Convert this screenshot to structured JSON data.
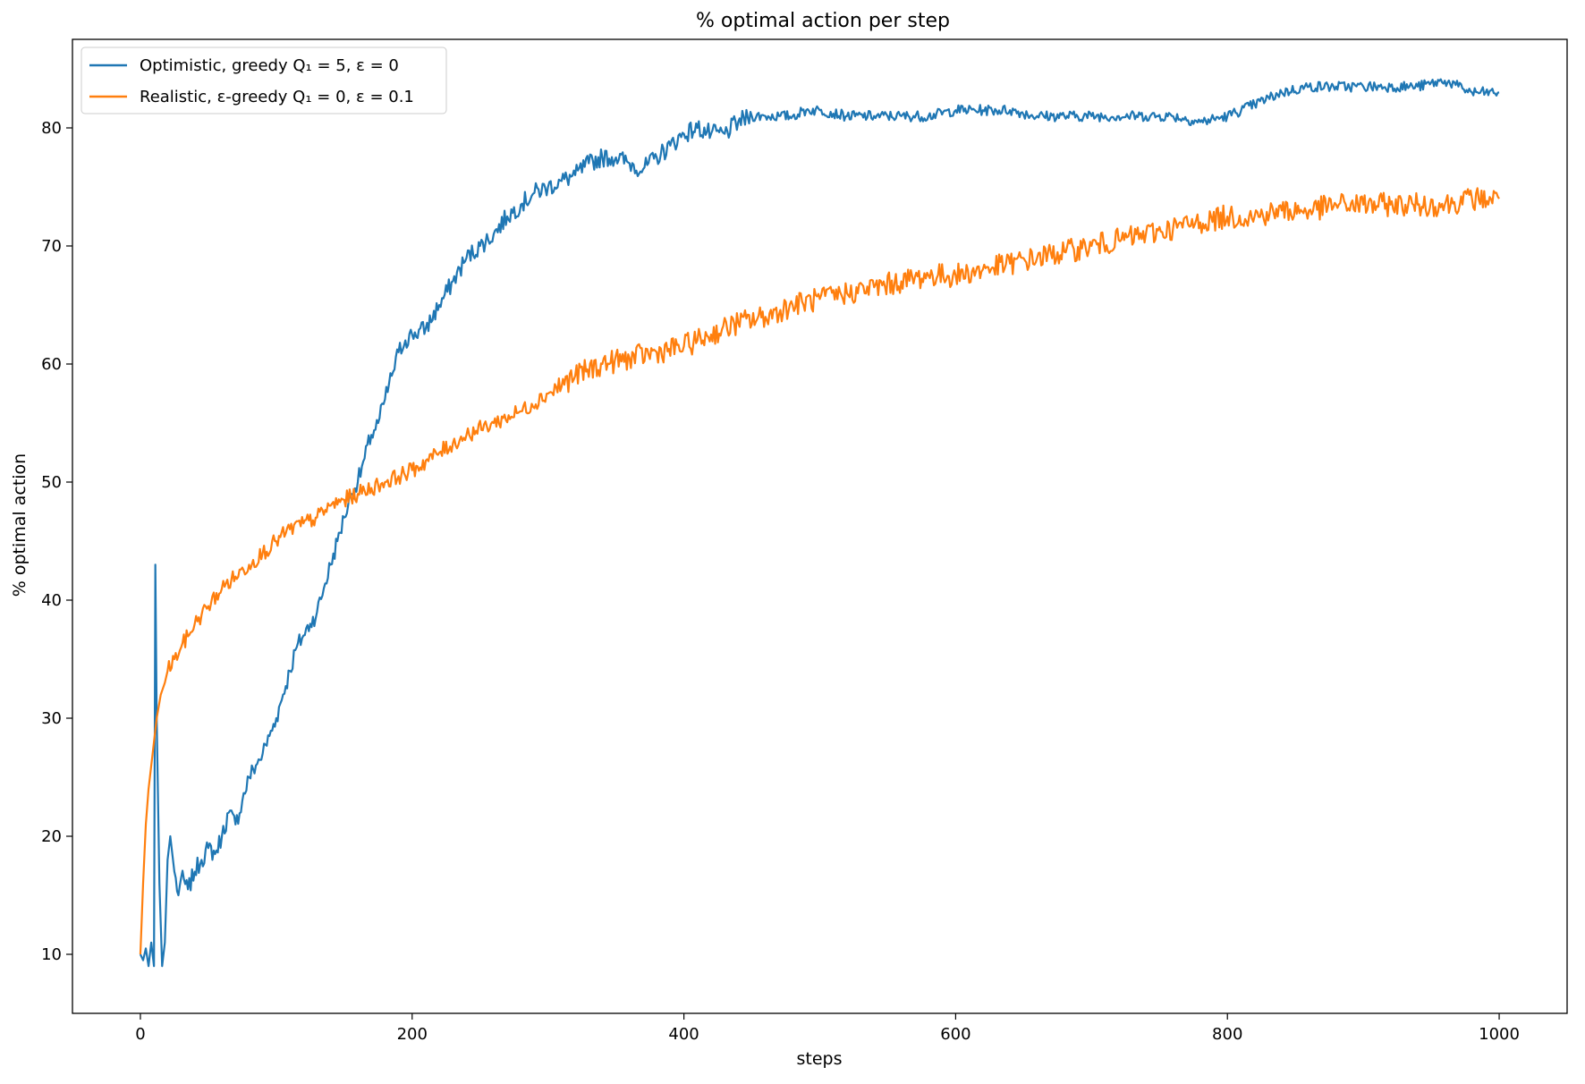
{
  "chart_data": {
    "type": "line",
    "title": "% optimal action per step",
    "xlabel": "steps",
    "ylabel": "% optimal action",
    "xlim": [
      -50,
      1050
    ],
    "ylim": [
      5,
      87.5
    ],
    "xticks": [
      0,
      200,
      400,
      600,
      800,
      1000
    ],
    "yticks": [
      10,
      20,
      30,
      40,
      50,
      60,
      70,
      80
    ],
    "grid": false,
    "legend_position": "top-left",
    "series": [
      {
        "name": "Optimistic, greedy Q₁ = 5, ε = 0",
        "color": "#1f77b4",
        "x": [
          0,
          2,
          4,
          6,
          8,
          10,
          11,
          12,
          14,
          16,
          18,
          20,
          22,
          25,
          28,
          30,
          35,
          40,
          45,
          50,
          55,
          60,
          65,
          70,
          75,
          80,
          85,
          90,
          95,
          100,
          105,
          110,
          115,
          120,
          125,
          130,
          135,
          140,
          145,
          150,
          155,
          160,
          165,
          170,
          175,
          180,
          185,
          190,
          195,
          200,
          210,
          220,
          230,
          240,
          250,
          260,
          270,
          280,
          290,
          300,
          310,
          320,
          330,
          340,
          350,
          360,
          370,
          380,
          390,
          400,
          410,
          420,
          430,
          440,
          450,
          460,
          470,
          480,
          490,
          500,
          520,
          540,
          560,
          580,
          600,
          620,
          640,
          660,
          680,
          700,
          720,
          740,
          760,
          780,
          800,
          820,
          840,
          860,
          880,
          900,
          920,
          940,
          960,
          970,
          980,
          990,
          1000
        ],
        "values": [
          10,
          9.5,
          10.5,
          9,
          11,
          9,
          43,
          30,
          16,
          9,
          11,
          18,
          20,
          17,
          15,
          16.5,
          15.5,
          17,
          18,
          19,
          18.5,
          20,
          22,
          21,
          23,
          25,
          26,
          27,
          28.5,
          30,
          32,
          34,
          36,
          37,
          38,
          39,
          41,
          43,
          45,
          47,
          49,
          50,
          52,
          54,
          55,
          57,
          59,
          61,
          62,
          62.5,
          63,
          65,
          67,
          69,
          70,
          71,
          72.5,
          73.5,
          74.5,
          75,
          75.5,
          76,
          77,
          77.5,
          77.5,
          77,
          76.5,
          77.5,
          78.5,
          79.5,
          80,
          79.5,
          79.5,
          80.5,
          81,
          81,
          81,
          81,
          81.5,
          81.5,
          81,
          81,
          81,
          81,
          81.5,
          81.5,
          81.5,
          81,
          81,
          81,
          81,
          81,
          81,
          80.5,
          81,
          82,
          83,
          83.5,
          83.5,
          83.5,
          83.5,
          83.5,
          84,
          83.5,
          83,
          83,
          83
        ]
      },
      {
        "name": "Realistic, ε-greedy Q₁ = 0, ε = 0.1",
        "color": "#ff7f0e",
        "x": [
          0,
          2,
          4,
          6,
          8,
          10,
          12,
          15,
          18,
          20,
          25,
          30,
          40,
          50,
          60,
          70,
          80,
          90,
          100,
          110,
          120,
          130,
          140,
          150,
          160,
          170,
          180,
          190,
          200,
          220,
          240,
          260,
          280,
          300,
          320,
          340,
          360,
          380,
          400,
          420,
          440,
          460,
          480,
          500,
          520,
          540,
          560,
          580,
          600,
          620,
          640,
          660,
          680,
          700,
          720,
          740,
          760,
          780,
          800,
          820,
          840,
          860,
          880,
          900,
          920,
          940,
          960,
          980,
          1000
        ],
        "values": [
          10,
          16,
          21,
          24,
          26,
          28,
          30,
          32,
          33,
          34,
          35,
          36,
          38,
          39.5,
          41,
          42,
          43,
          44,
          45,
          46,
          46.5,
          47,
          48,
          48.5,
          49,
          49.5,
          50,
          50.5,
          51,
          52.5,
          54,
          55,
          56,
          57.5,
          59,
          60,
          60.5,
          61,
          61.5,
          62.5,
          63.5,
          64,
          65,
          65.5,
          66,
          66.5,
          67,
          67.5,
          67.5,
          68,
          68.5,
          69,
          69.5,
          70,
          70.5,
          71,
          71.5,
          72,
          72.5,
          72.5,
          73,
          73,
          73.5,
          73.5,
          73.5,
          73.5,
          73.5,
          74,
          74
        ]
      }
    ]
  }
}
